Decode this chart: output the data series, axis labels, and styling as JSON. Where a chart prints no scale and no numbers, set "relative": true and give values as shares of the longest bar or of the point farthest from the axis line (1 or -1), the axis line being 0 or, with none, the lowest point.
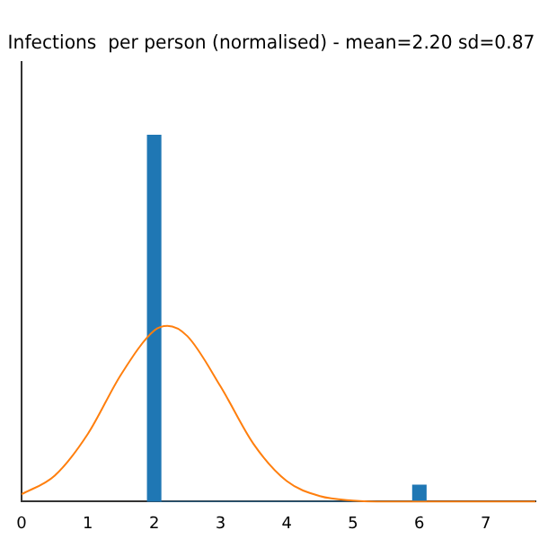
{
  "chart_data": {
    "type": "histogram",
    "title": "Infections  per person (normalised) - mean=2.20 sd=0.87",
    "relative": true,
    "bins": [
      1.9,
      2.1,
      5.9,
      6.1
    ],
    "values": [
      1,
      0,
      0.045
    ],
    "color": "#1f77b4",
    "xlim": [
      0,
      7.75
    ],
    "xticks": [
      0,
      1,
      2,
      3,
      4,
      5,
      6,
      7
    ],
    "grid": false,
    "legend": false,
    "series": [
      {
        "type": "line",
        "color": "#ff7f0e",
        "marker": "none",
        "x": [
          0,
          0.5,
          1,
          1.5,
          2,
          2.2,
          2.5,
          3,
          3.5,
          4,
          4.5,
          5,
          5.5,
          6,
          7,
          7.75
        ],
        "values": [
          0.02,
          0.071,
          0.185,
          0.347,
          0.467,
          0.48,
          0.452,
          0.315,
          0.157,
          0.056,
          0.015,
          0.003,
          0,
          0,
          0,
          0
        ]
      }
    ]
  }
}
